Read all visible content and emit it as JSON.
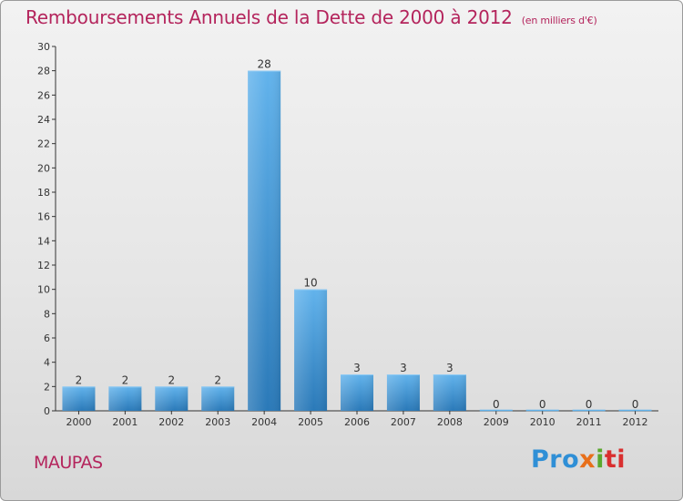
{
  "title": "Remboursements Annuels de la Dette de 2000 à 2012",
  "subtitle": "(en milliers d'€)",
  "commune": "MAUPAS",
  "logo": {
    "part1": "Pro",
    "part2": "x",
    "part3": "i",
    "part4": "ti"
  },
  "colors": {
    "title": "#b4245c",
    "bar_top": "#62b3ec",
    "bar_bottom": "#2a79b8"
  },
  "chart_data": {
    "type": "bar",
    "title": "Remboursements Annuels de la Dette de 2000 à 2012",
    "subtitle": "(en milliers d'€)",
    "categories": [
      "2000",
      "2001",
      "2002",
      "2003",
      "2004",
      "2005",
      "2006",
      "2007",
      "2008",
      "2009",
      "2010",
      "2011",
      "2012"
    ],
    "values": [
      2,
      2,
      2,
      2,
      28,
      10,
      3,
      3,
      3,
      0,
      0,
      0,
      0
    ],
    "ylim": [
      0,
      30
    ],
    "yticks": [
      0,
      2,
      4,
      6,
      8,
      10,
      12,
      14,
      16,
      18,
      20,
      22,
      24,
      26,
      28,
      30
    ],
    "data_labels": true,
    "grid": false
  }
}
